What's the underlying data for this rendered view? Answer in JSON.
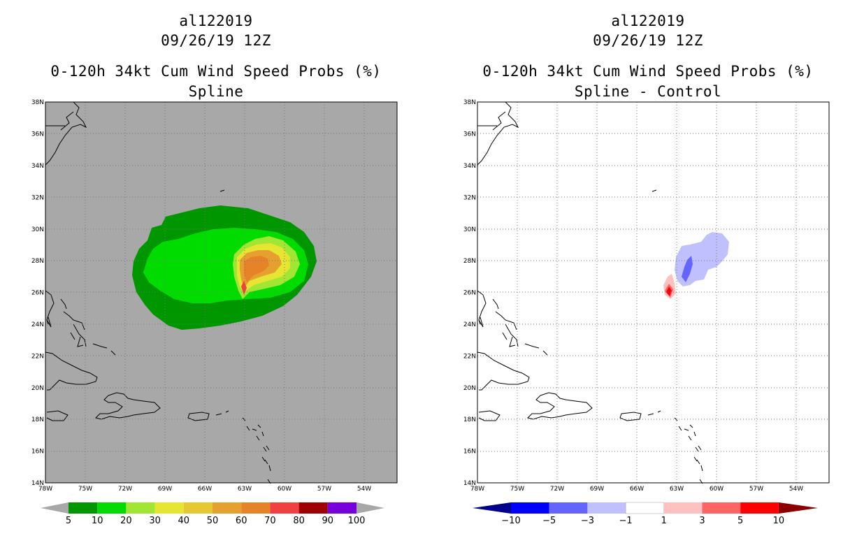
{
  "left_panel": {
    "title_line1": "al122019",
    "title_line2": "09/26/19 12Z",
    "title_line3": "0-120h 34kt Cum Wind Speed Probs (%)",
    "title_line4": "Spline"
  },
  "right_panel": {
    "title_line1": "al122019",
    "title_line2": "09/26/19 12Z",
    "title_line3": "0-120h 34kt Cum Wind Speed Probs (%)",
    "title_line4": "Spline - Control"
  },
  "map": {
    "lon_labels": [
      "78W",
      "75W",
      "72W",
      "69W",
      "66W",
      "63W",
      "60W",
      "57W",
      "54W"
    ],
    "lat_labels": [
      "14N",
      "16N",
      "18N",
      "20N",
      "22N",
      "24N",
      "26N",
      "28N",
      "30N",
      "32N",
      "34N",
      "36N",
      "38N"
    ]
  },
  "left_colorbar": {
    "labels": [
      "5",
      "10",
      "20",
      "30",
      "40",
      "50",
      "60",
      "70",
      "80",
      "90",
      "100"
    ],
    "colors": [
      "#009600",
      "#00dc00",
      "#a0e632",
      "#e6e632",
      "#e6c832",
      "#e6a030",
      "#e68228",
      "#f04040",
      "#a00000",
      "#7800dc"
    ]
  },
  "right_colorbar": {
    "labels": [
      "-10",
      "-5",
      "-3",
      "-1",
      "1",
      "3",
      "5",
      "10"
    ],
    "colors": [
      "#0000ff",
      "#6464ff",
      "#c0c0ff",
      "#ffffff",
      "#ffc0c0",
      "#ff6464",
      "#ff0000"
    ]
  },
  "colors": {
    "map_background": "#a8a8a8",
    "contour_5": "#009600",
    "contour_10": "#00dc00",
    "contour_20": "#a0e632",
    "contour_30": "#e6e632",
    "contour_50": "#e6a030",
    "contour_60": "#e68228",
    "contour_70": "#f04040"
  }
}
